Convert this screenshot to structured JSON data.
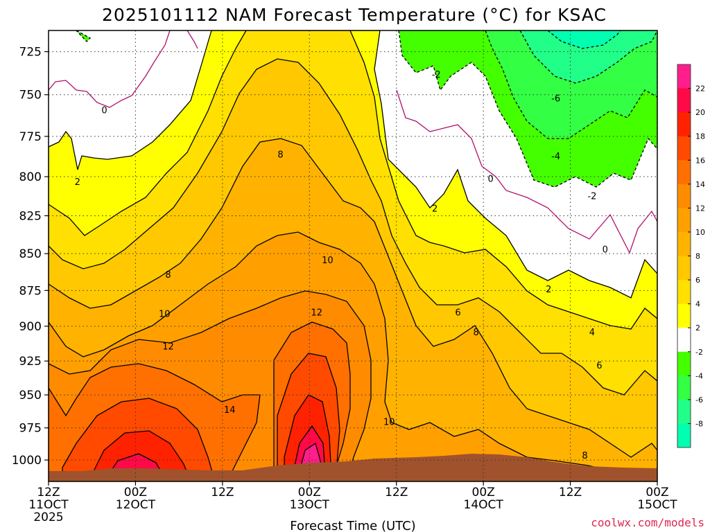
{
  "chart_data": {
    "type": "heatmap",
    "title": "2025101112 NAM Forecast Temperature (°C) for KSAC",
    "xlabel": "Forecast Time (UTC)",
    "ylabel": "",
    "x_ticks": [
      {
        "line1": "12Z",
        "line2": "11OCT",
        "line3": "2025",
        "hours": 0
      },
      {
        "line1": "00Z",
        "line2": "12OCT",
        "line3": "",
        "hours": 12
      },
      {
        "line1": "12Z",
        "line2": "",
        "line3": "",
        "hours": 24
      },
      {
        "line1": "00Z",
        "line2": "13OCT",
        "line3": "",
        "hours": 36
      },
      {
        "line1": "12Z",
        "line2": "",
        "line3": "",
        "hours": 48
      },
      {
        "line1": "00Z",
        "line2": "14OCT",
        "line3": "",
        "hours": 60
      },
      {
        "line1": "12Z",
        "line2": "",
        "line3": "",
        "hours": 72
      },
      {
        "line1": "00Z",
        "line2": "15OCT",
        "line3": "",
        "hours": 84
      }
    ],
    "xlim_hours": [
      0,
      84
    ],
    "y_ticks": [
      725,
      750,
      775,
      800,
      825,
      850,
      875,
      900,
      925,
      950,
      975,
      1000
    ],
    "ylim_hpa": [
      1017,
      713
    ],
    "grid": true,
    "colorbar": {
      "levels": [
        22,
        20,
        18,
        16,
        14,
        12,
        10,
        8,
        6,
        4,
        2,
        -2,
        -4,
        -6,
        -8
      ],
      "colors": [
        "#ff1e8c",
        "#ff0a46",
        "#ff2200",
        "#ff4a00",
        "#ff7000",
        "#ff8c00",
        "#ffa000",
        "#ffb300",
        "#ffc800",
        "#ffe000",
        "#ffff00",
        "#ffffff",
        "#44ff00",
        "#33ff44",
        "#22ff88",
        "#00ffb0"
      ]
    },
    "contour_labels": [
      {
        "text": "0",
        "hours": 7.7,
        "hpa": 759
      },
      {
        "text": "0",
        "hours": 61.0,
        "hpa": 801
      },
      {
        "text": "0",
        "hours": 76.8,
        "hpa": 847
      },
      {
        "text": "2",
        "hours": 4.0,
        "hpa": 803
      },
      {
        "text": "2",
        "hours": 53.3,
        "hpa": 820
      },
      {
        "text": "2",
        "hours": 69.0,
        "hpa": 874
      },
      {
        "text": "-2",
        "hours": 53.5,
        "hpa": 738
      },
      {
        "text": "-2",
        "hours": 75.0,
        "hpa": 812
      },
      {
        "text": "-4",
        "hours": 70.0,
        "hpa": 787
      },
      {
        "text": "-6",
        "hours": 70.0,
        "hpa": 752
      },
      {
        "text": "8",
        "hours": 32.0,
        "hpa": 786
      },
      {
        "text": "8",
        "hours": 16.5,
        "hpa": 864
      },
      {
        "text": "8",
        "hours": 59.0,
        "hpa": 904
      },
      {
        "text": "8",
        "hours": 74.0,
        "hpa": 996
      },
      {
        "text": "10",
        "hours": 38.5,
        "hpa": 854
      },
      {
        "text": "10",
        "hours": 16.0,
        "hpa": 891
      },
      {
        "text": "10",
        "hours": 47.0,
        "hpa": 970
      },
      {
        "text": "12",
        "hours": 37.0,
        "hpa": 890
      },
      {
        "text": "12",
        "hours": 16.5,
        "hpa": 914
      },
      {
        "text": "14",
        "hours": 25.0,
        "hpa": 961
      },
      {
        "text": "6",
        "hours": 56.5,
        "hpa": 890
      },
      {
        "text": "4",
        "hours": 75.0,
        "hpa": 904
      },
      {
        "text": "6",
        "hours": 76.0,
        "hpa": 928
      }
    ],
    "terrain_color": "#a0522d"
  },
  "credit": "coolwx.com/models"
}
